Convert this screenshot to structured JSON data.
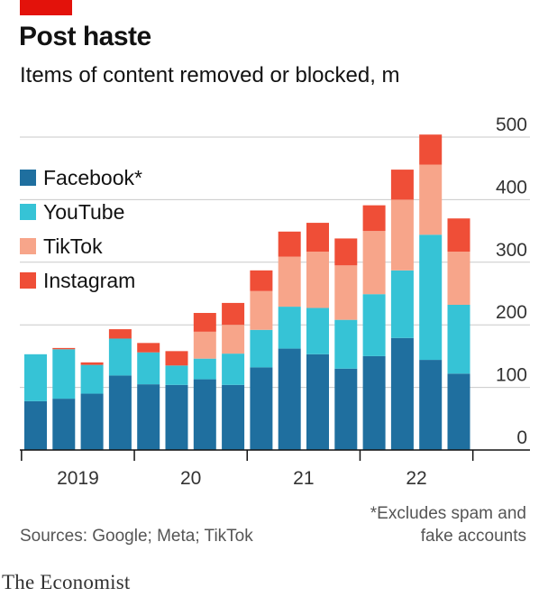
{
  "header": {
    "title": "Post haste",
    "subtitle": "Items of content removed or blocked, m"
  },
  "footer": {
    "source": "Sources: Google; Meta; TikTok",
    "footnote_line1": "*Excludes spam and",
    "footnote_line2": "fake accounts",
    "brand": "The Economist"
  },
  "colors": {
    "Facebook*": "#1f6f9f",
    "YouTube": "#36c3d6",
    "TikTok": "#f7a58a",
    "Instagram": "#ef4e37",
    "accent": "#e3120b"
  },
  "chart_data": {
    "type": "bar",
    "stacked": true,
    "title": "Post haste",
    "subtitle": "Items of content removed or blocked, m",
    "ylim": [
      0,
      500
    ],
    "yticks": [
      0,
      100,
      200,
      300,
      400,
      500
    ],
    "y_axis_side": "right",
    "grid": true,
    "legend_position": "top-left",
    "x_labels": [
      {
        "label": "2019",
        "first": 0,
        "last": 3
      },
      {
        "label": "20",
        "first": 4,
        "last": 7
      },
      {
        "label": "21",
        "first": 8,
        "last": 11
      },
      {
        "label": "22",
        "first": 12,
        "last": 15
      }
    ],
    "categories": [
      "2019 Q1",
      "2019 Q2",
      "2019 Q3",
      "2019 Q4",
      "2020 Q1",
      "2020 Q2",
      "2020 Q3",
      "2020 Q4",
      "2021 Q1",
      "2021 Q2",
      "2021 Q3",
      "2021 Q4",
      "2022 Q1",
      "2022 Q2",
      "2022 Q3",
      "2022 Q4"
    ],
    "series": [
      {
        "name": "Facebook*",
        "values": [
          78,
          82,
          90,
          119,
          105,
          104,
          113,
          104,
          132,
          162,
          153,
          130,
          150,
          179,
          144,
          122
        ]
      },
      {
        "name": "YouTube",
        "values": [
          75,
          79,
          46,
          59,
          51,
          31,
          33,
          50,
          60,
          67,
          74,
          78,
          99,
          108,
          200,
          110
        ]
      },
      {
        "name": "TikTok",
        "values": [
          0,
          0,
          0,
          0,
          0,
          0,
          43,
          46,
          62,
          80,
          90,
          87,
          101,
          113,
          112,
          85
        ]
      },
      {
        "name": "Instagram",
        "values": [
          0,
          2,
          4,
          15,
          15,
          23,
          30,
          35,
          33,
          40,
          46,
          43,
          41,
          48,
          48,
          53
        ]
      }
    ]
  }
}
